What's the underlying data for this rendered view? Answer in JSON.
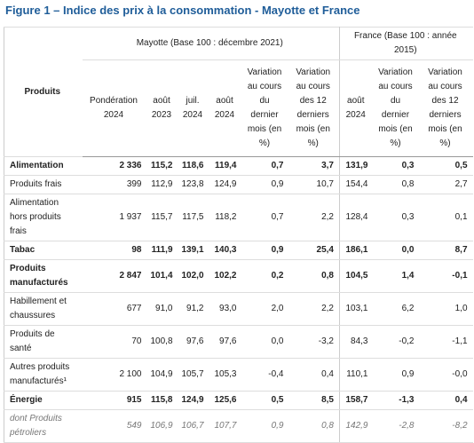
{
  "title": "Figure 1 – Indice des prix à la consommation - Mayotte et France",
  "table": {
    "group_headers": [
      "Produits",
      "Mayotte (Base 100 : décembre 2021)",
      "France (Base 100 : année 2015)"
    ],
    "columns": [
      "Pondération 2024",
      "août 2023",
      "juil. 2024",
      "août 2024",
      "Variation au cours du dernier mois (en %)",
      "Variation au cours des 12 derniers mois (en %)",
      "août 2024",
      "Variation au cours du dernier mois (en %)",
      "Variation au cours des 12 derniers mois (en %)"
    ],
    "rows": [
      [
        "Alimentation",
        "2 336",
        "115,2",
        "118,6",
        "119,4",
        "0,7",
        "3,7",
        "131,9",
        "0,3",
        "0,5"
      ],
      [
        "Produits frais",
        "399",
        "112,9",
        "123,8",
        "124,9",
        "0,9",
        "10,7",
        "154,4",
        "0,8",
        "2,7"
      ],
      [
        "Alimentation hors produits frais",
        "1 937",
        "115,7",
        "117,5",
        "118,2",
        "0,7",
        "2,2",
        "128,4",
        "0,3",
        "0,1"
      ],
      [
        "Tabac",
        "98",
        "111,9",
        "139,1",
        "140,3",
        "0,9",
        "25,4",
        "186,1",
        "0,0",
        "8,7"
      ],
      [
        "Produits manufacturés",
        "2 847",
        "101,4",
        "102,0",
        "102,2",
        "0,2",
        "0,8",
        "104,5",
        "1,4",
        "-0,1"
      ],
      [
        "Habillement et chaussures",
        "677",
        "91,0",
        "91,2",
        "93,0",
        "2,0",
        "2,2",
        "103,1",
        "6,2",
        "1,0"
      ],
      [
        "Produits de santé",
        "70",
        "100,8",
        "97,6",
        "97,6",
        "0,0",
        "-3,2",
        "84,3",
        "-0,2",
        "-1,1"
      ],
      [
        "Autres produits manufacturés¹",
        "2 100",
        "104,9",
        "105,7",
        "105,3",
        "-0,4",
        "0,4",
        "110,1",
        "0,9",
        "-0,0"
      ],
      [
        "Énergie",
        "915",
        "115,8",
        "124,9",
        "125,6",
        "0,5",
        "8,5",
        "158,7",
        "-1,3",
        "0,4"
      ],
      [
        "dont Produits pétroliers",
        "549",
        "106,9",
        "106,7",
        "107,7",
        "0,9",
        "0,8",
        "142,9",
        "-2,8",
        "-8,2"
      ]
    ]
  }
}
